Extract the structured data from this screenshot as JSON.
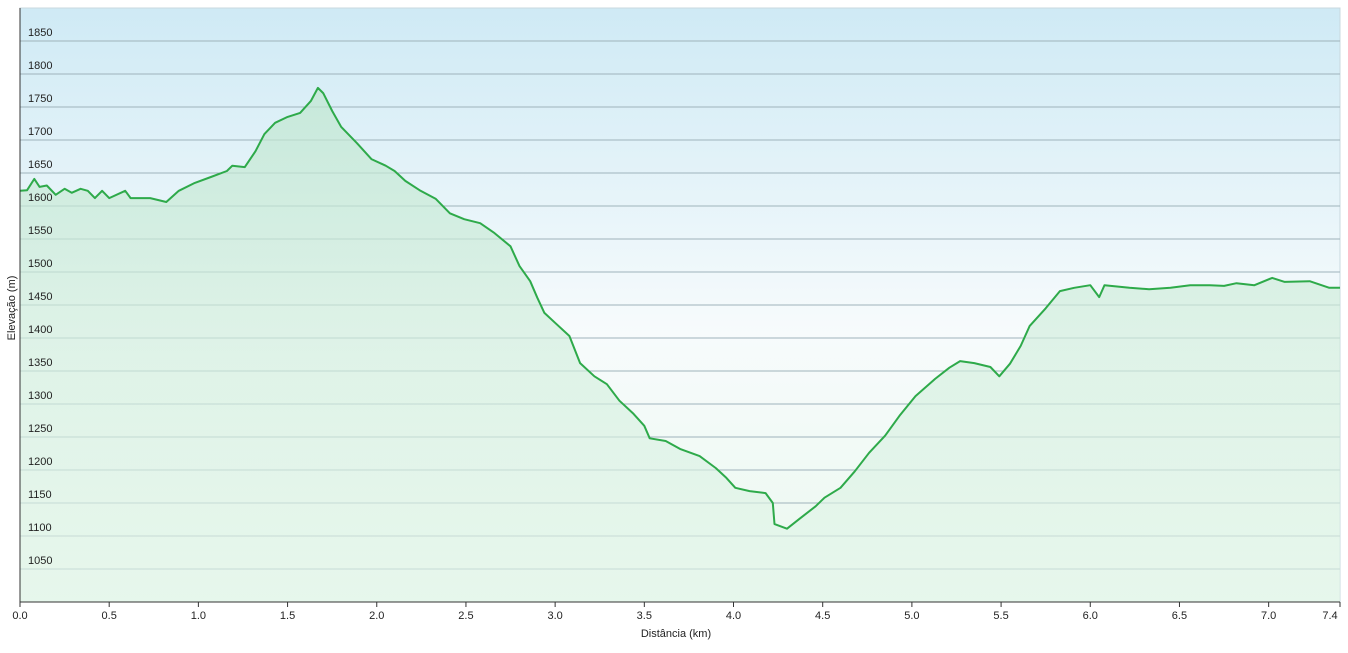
{
  "chart_data": {
    "type": "area",
    "xlabel": "Distância  (km)",
    "ylabel": "Elevação (m)",
    "xlim": [
      0,
      7.4
    ],
    "ylim": [
      1000,
      1900
    ],
    "xticks": [
      {
        "value": 0,
        "label": "0.0"
      },
      0.5,
      {
        "value": 1,
        "label": "1.0"
      },
      1.5,
      {
        "value": 2,
        "label": "2.0"
      },
      2.5,
      {
        "value": 3,
        "label": "3.0"
      },
      3.5,
      {
        "value": 4,
        "label": "4.0"
      },
      4.5,
      {
        "value": 5,
        "label": "5.0"
      },
      5.5,
      {
        "value": 6,
        "label": "6.0"
      },
      6.5,
      {
        "value": 7,
        "label": "7.0"
      },
      7.4
    ],
    "yticks": [
      1050,
      1100,
      1150,
      1200,
      1250,
      1300,
      1350,
      1400,
      1450,
      1500,
      1550,
      1600,
      1650,
      1700,
      1750,
      1800,
      1850
    ],
    "grid": true,
    "series": [
      {
        "name": "Elevação",
        "color": "#2eaa4a",
        "x": [
          0,
          0.04,
          0.08,
          0.11,
          0.15,
          0.2,
          0.25,
          0.29,
          0.34,
          0.38,
          0.42,
          0.46,
          0.5,
          0.59,
          0.62,
          0.73,
          0.82,
          0.89,
          0.98,
          1.07,
          1.16,
          1.19,
          1.26,
          1.32,
          1.37,
          1.43,
          1.5,
          1.57,
          1.63,
          1.67,
          1.7,
          1.75,
          1.8,
          1.89,
          1.97,
          2.05,
          2.1,
          2.16,
          2.24,
          2.33,
          2.41,
          2.49,
          2.58,
          2.66,
          2.75,
          2.8,
          2.86,
          2.9,
          2.94,
          3.0,
          3.08,
          3.14,
          3.22,
          3.29,
          3.36,
          3.44,
          3.5,
          3.53,
          3.62,
          3.7,
          3.81,
          3.9,
          3.96,
          4.01,
          4.09,
          4.18,
          4.22,
          4.23,
          4.3,
          4.37,
          4.46,
          4.51,
          4.6,
          4.68,
          4.76,
          4.85,
          4.93,
          5.02,
          5.13,
          5.21,
          5.27,
          5.35,
          5.44,
          5.49,
          5.55,
          5.61,
          5.66,
          5.75,
          5.83,
          5.91,
          6.0,
          6.05,
          6.08,
          6.22,
          6.33,
          6.45,
          6.56,
          6.67,
          6.75,
          6.82,
          6.92,
          7.02,
          7.09,
          7.23,
          7.34,
          7.4
        ],
        "values": [
          1623,
          1624,
          1641,
          1629,
          1631,
          1617,
          1626,
          1620,
          1626,
          1623,
          1612,
          1623,
          1612,
          1623,
          1612,
          1612,
          1606,
          1623,
          1635,
          1644,
          1653,
          1661,
          1659,
          1683,
          1709,
          1726,
          1735,
          1741,
          1759,
          1779,
          1771,
          1744,
          1720,
          1695,
          1671,
          1661,
          1653,
          1638,
          1624,
          1611,
          1589,
          1580,
          1574,
          1559,
          1539,
          1509,
          1486,
          1461,
          1438,
          1423,
          1403,
          1362,
          1342,
          1330,
          1305,
          1285,
          1267,
          1248,
          1244,
          1232,
          1221,
          1203,
          1188,
          1173,
          1168,
          1165,
          1150,
          1118,
          1111,
          1126,
          1145,
          1158,
          1173,
          1198,
          1226,
          1252,
          1282,
          1312,
          1338,
          1355,
          1365,
          1362,
          1356,
          1342,
          1361,
          1388,
          1418,
          1445,
          1471,
          1476,
          1480,
          1462,
          1480,
          1476,
          1474,
          1476,
          1480,
          1480,
          1479,
          1483,
          1480,
          1491,
          1485,
          1486,
          1476,
          1476
        ]
      }
    ]
  }
}
